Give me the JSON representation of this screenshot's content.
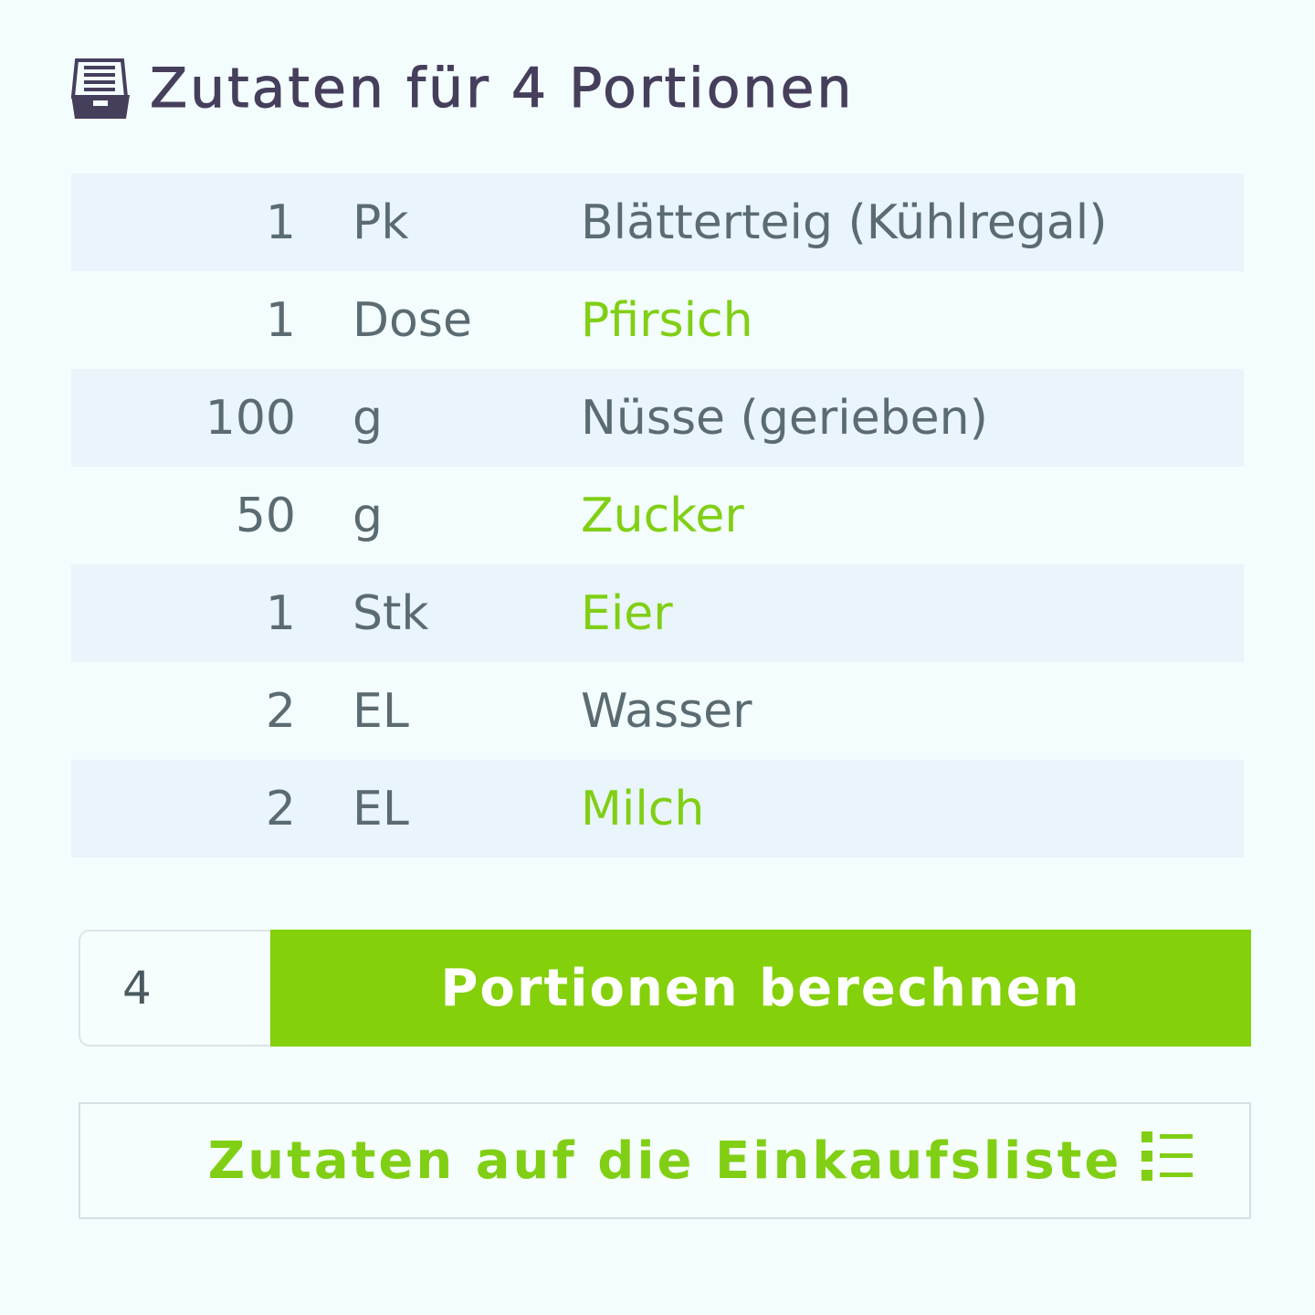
{
  "header": {
    "title": "Zutaten für 4 Portionen",
    "icon": "inbox-tray-icon"
  },
  "ingredients": [
    {
      "amount": "1",
      "unit": "Pk",
      "name": "Blätterteig (Kühlregal)",
      "link": false
    },
    {
      "amount": "1",
      "unit": "Dose",
      "name": "Pfirsich",
      "link": true
    },
    {
      "amount": "100",
      "unit": "g",
      "name": "Nüsse (gerieben)",
      "link": false
    },
    {
      "amount": "50",
      "unit": "g",
      "name": "Zucker",
      "link": true
    },
    {
      "amount": "1",
      "unit": "Stk",
      "name": "Eier",
      "link": true
    },
    {
      "amount": "2",
      "unit": "EL",
      "name": "Wasser",
      "link": false
    },
    {
      "amount": "2",
      "unit": "EL",
      "name": "Milch",
      "link": true
    }
  ],
  "calculator": {
    "portions_value": "4",
    "button_label": "Portionen berechnen"
  },
  "shopping": {
    "label": "Zutaten auf die Einkaufsliste",
    "icon": "list-icon"
  },
  "colors": {
    "accent": "#84d00a",
    "title": "#463f5c",
    "text": "#5b6b72"
  }
}
